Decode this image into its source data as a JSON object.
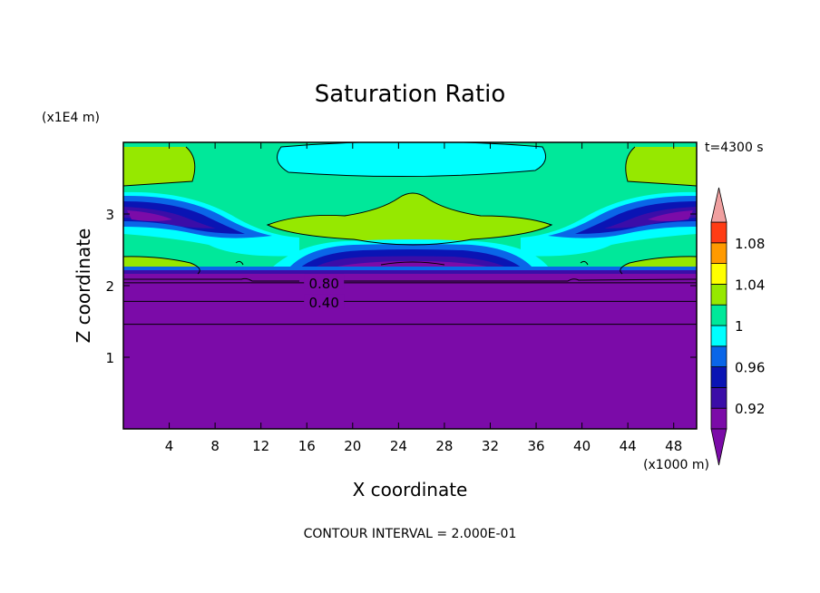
{
  "chart_data": {
    "type": "heatmap",
    "title": "Saturation Ratio",
    "xlabel": "X coordinate",
    "ylabel": "Z coordinate",
    "x_unit": "(x1000 m)",
    "y_unit": "(x1E4 m)",
    "time_label": "t=4300 s",
    "footer": "CONTOUR INTERVAL = 2.000E-01",
    "xlim": [
      0,
      50
    ],
    "ylim": [
      0,
      4
    ],
    "x_ticks": [
      "4",
      "8",
      "12",
      "16",
      "20",
      "24",
      "28",
      "32",
      "36",
      "40",
      "44",
      "48"
    ],
    "y_ticks": [
      "1",
      "2",
      "3"
    ],
    "x_tick_values": [
      4,
      8,
      12,
      16,
      20,
      24,
      28,
      32,
      36,
      40,
      44,
      48
    ],
    "y_tick_values": [
      1,
      2,
      3
    ],
    "contour_labels": [
      {
        "text": "0.80",
        "x": 17.5,
        "y": 2.04
      },
      {
        "text": "0.40",
        "x": 17.5,
        "y": 1.77
      }
    ],
    "contour_levels_z": [
      1.46,
      1.78,
      2.04
    ],
    "colorbar": {
      "levels": [
        0.9,
        0.92,
        0.94,
        0.96,
        0.98,
        1.0,
        1.02,
        1.04,
        1.06,
        1.08,
        1.1
      ],
      "tick_labels": [
        "0.92",
        "0.96",
        "1",
        "1.04",
        "1.08"
      ],
      "tick_values": [
        0.92,
        0.96,
        1.0,
        1.04,
        1.08
      ],
      "colors": [
        "#7b0ba8",
        "#3b0da8",
        "#0a14b4",
        "#0a66e8",
        "#00ffff",
        "#00e89a",
        "#96e800",
        "#ffff00",
        "#ff9a00",
        "#ff3c14",
        "#f0a0a0"
      ],
      "under_color": "#7b0ba8",
      "over_color": "#f0a0a0"
    },
    "colors": {
      "deep_purple": "#7b0ba8",
      "indigo": "#3b0da8",
      "dark_blue": "#0a14b4",
      "blue": "#0a66e8",
      "cyan": "#00ffff",
      "green": "#00e89a",
      "yellow_green": "#96e800"
    }
  }
}
